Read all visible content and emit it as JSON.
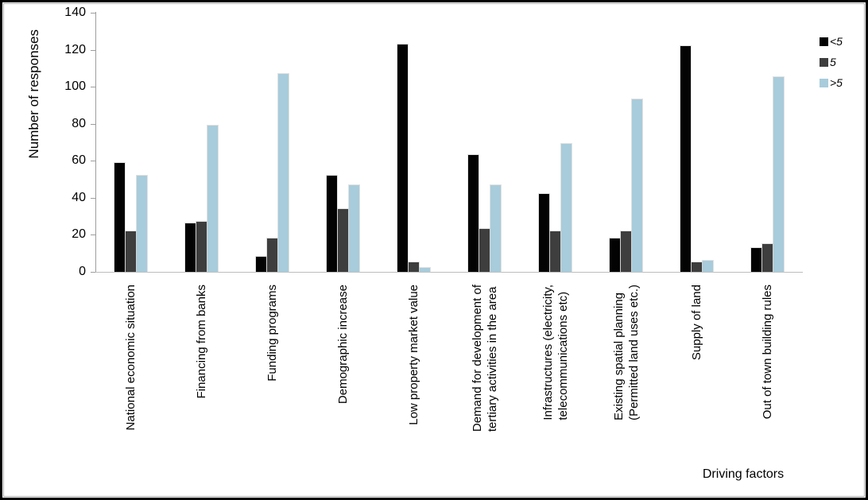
{
  "chart_data": {
    "type": "bar",
    "title": "",
    "ylabel": "Number of responses",
    "xlabel": "Driving factors",
    "ylim": [
      0,
      140
    ],
    "yticks": [
      0,
      20,
      40,
      60,
      80,
      100,
      120,
      140
    ],
    "grid": false,
    "legend_position": "right",
    "categories": [
      "National economic situation",
      "Financing from banks",
      "Funding programs",
      "Demographic increase",
      "Low property market value",
      "Demand for development of\ntertiary activities in the area",
      "Infrastructures (electricity,\ntelecommunications etc)",
      "Existing spatial planning\n(Permitted land uses etc.)",
      "Supply of land",
      "Out of town building rules"
    ],
    "series": [
      {
        "name": "<5",
        "color": "#030303",
        "values": [
          59,
          26,
          8,
          52,
          123,
          63,
          42,
          18,
          122,
          13
        ]
      },
      {
        "name": "5",
        "color": "#3e3e3e",
        "values": [
          22,
          27,
          18,
          34,
          5,
          23,
          22,
          22,
          5,
          15
        ]
      },
      {
        "name": ">5",
        "color": "#a8ccdb",
        "values": [
          52,
          79,
          107,
          47,
          2,
          47,
          69,
          93,
          6,
          105
        ]
      }
    ],
    "axis_color": "#9d9d9d",
    "baseline_color": "#bdbdbd"
  }
}
